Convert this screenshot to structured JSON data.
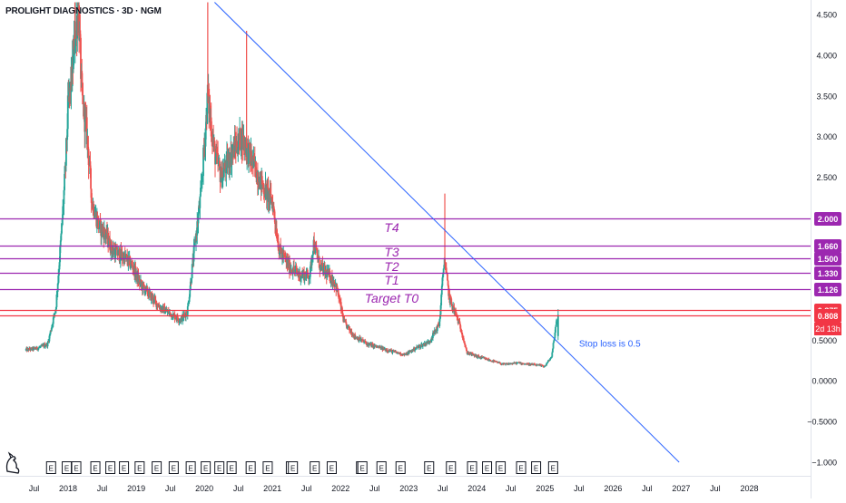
{
  "header": {
    "symbol_title": "PROLIGHT DIAGNOSTICS · 3D · NGM"
  },
  "colors": {
    "up": "#26a69a",
    "down": "#ef5350",
    "target_line": "#9c27b0",
    "current_line": "#f23645",
    "trendline": "#2962ff",
    "note_text": "#2962ff",
    "axis_text": "#131722"
  },
  "chart_data": {
    "type": "candlestick",
    "title": "PROLIGHT DIAGNOSTICS · 3D · NGM",
    "xlabel": "",
    "ylabel": "",
    "x_range": [
      2017.0,
      2028.9
    ],
    "ylim": [
      -1.0,
      4.65
    ],
    "x_ticks": [
      {
        "x": 2017.5,
        "label": "Jul"
      },
      {
        "x": 2018.0,
        "label": "2018"
      },
      {
        "x": 2018.5,
        "label": "Jul"
      },
      {
        "x": 2019.0,
        "label": "2019"
      },
      {
        "x": 2019.5,
        "label": "Jul"
      },
      {
        "x": 2020.0,
        "label": "2020"
      },
      {
        "x": 2020.5,
        "label": "Jul"
      },
      {
        "x": 2021.0,
        "label": "2021"
      },
      {
        "x": 2021.5,
        "label": "Jul"
      },
      {
        "x": 2022.0,
        "label": "2022"
      },
      {
        "x": 2022.5,
        "label": "Jul"
      },
      {
        "x": 2023.0,
        "label": "2023"
      },
      {
        "x": 2023.5,
        "label": "Jul"
      },
      {
        "x": 2024.0,
        "label": "2024"
      },
      {
        "x": 2024.5,
        "label": "Jul"
      },
      {
        "x": 2025.0,
        "label": "2025"
      },
      {
        "x": 2025.5,
        "label": "Jul"
      },
      {
        "x": 2026.0,
        "label": "2026"
      },
      {
        "x": 2026.5,
        "label": "Jul"
      },
      {
        "x": 2027.0,
        "label": "2027"
      },
      {
        "x": 2027.5,
        "label": "Jul"
      },
      {
        "x": 2028.0,
        "label": "2028"
      }
    ],
    "y_ticks": [
      {
        "y": 4.5,
        "label": "4.500"
      },
      {
        "y": 4.0,
        "label": "4.000"
      },
      {
        "y": 3.5,
        "label": "3.500"
      },
      {
        "y": 3.0,
        "label": "3.000"
      },
      {
        "y": 2.5,
        "label": "2.500"
      },
      {
        "y": 0.5,
        "label": "0.5000"
      },
      {
        "y": 0.0,
        "label": "0.0000"
      },
      {
        "y": -0.5,
        "label": "−0.5000"
      },
      {
        "y": -1.0,
        "label": "−1.000"
      }
    ],
    "price_path": [
      [
        2017.38,
        0.38
      ],
      [
        2017.55,
        0.4
      ],
      [
        2017.7,
        0.45
      ],
      [
        2017.82,
        0.9
      ],
      [
        2017.9,
        1.8
      ],
      [
        2017.96,
        2.6
      ],
      [
        2018.0,
        3.4
      ],
      [
        2018.05,
        3.7
      ],
      [
        2018.1,
        4.2
      ],
      [
        2018.15,
        4.6
      ],
      [
        2018.2,
        3.5
      ],
      [
        2018.28,
        3.0
      ],
      [
        2018.35,
        2.2
      ],
      [
        2018.45,
        1.9
      ],
      [
        2018.55,
        1.8
      ],
      [
        2018.65,
        1.6
      ],
      [
        2018.75,
        1.55
      ],
      [
        2018.85,
        1.5
      ],
      [
        2018.95,
        1.4
      ],
      [
        2019.05,
        1.2
      ],
      [
        2019.15,
        1.1
      ],
      [
        2019.25,
        1.0
      ],
      [
        2019.35,
        0.9
      ],
      [
        2019.45,
        0.85
      ],
      [
        2019.55,
        0.8
      ],
      [
        2019.65,
        0.75
      ],
      [
        2019.75,
        0.85
      ],
      [
        2019.85,
        1.6
      ],
      [
        2019.95,
        2.3
      ],
      [
        2020.05,
        3.5
      ],
      [
        2020.15,
        2.8
      ],
      [
        2020.25,
        2.5
      ],
      [
        2020.4,
        2.8
      ],
      [
        2020.55,
        3.0
      ],
      [
        2020.7,
        2.7
      ],
      [
        2020.85,
        2.4
      ],
      [
        2021.0,
        2.2
      ],
      [
        2021.1,
        1.6
      ],
      [
        2021.25,
        1.4
      ],
      [
        2021.4,
        1.3
      ],
      [
        2021.55,
        1.3
      ],
      [
        2021.6,
        1.7
      ],
      [
        2021.7,
        1.4
      ],
      [
        2021.82,
        1.3
      ],
      [
        2021.92,
        1.2
      ],
      [
        2021.98,
        1.0
      ],
      [
        2022.05,
        0.72
      ],
      [
        2022.2,
        0.55
      ],
      [
        2022.4,
        0.45
      ],
      [
        2022.6,
        0.4
      ],
      [
        2022.8,
        0.35
      ],
      [
        2022.95,
        0.32
      ],
      [
        2023.1,
        0.4
      ],
      [
        2023.3,
        0.48
      ],
      [
        2023.45,
        0.7
      ],
      [
        2023.52,
        1.5
      ],
      [
        2023.6,
        1.0
      ],
      [
        2023.7,
        0.8
      ],
      [
        2023.78,
        0.6
      ],
      [
        2023.85,
        0.35
      ],
      [
        2024.0,
        0.3
      ],
      [
        2024.2,
        0.25
      ],
      [
        2024.4,
        0.2
      ],
      [
        2024.6,
        0.22
      ],
      [
        2024.8,
        0.2
      ],
      [
        2025.0,
        0.18
      ],
      [
        2025.1,
        0.3
      ],
      [
        2025.18,
        0.81
      ]
    ],
    "spikes": [
      {
        "x": 2018.1,
        "high": 4.65
      },
      {
        "x": 2020.05,
        "high": 4.65
      },
      {
        "x": 2020.62,
        "high": 4.3
      },
      {
        "x": 2023.53,
        "high": 2.3
      }
    ],
    "horizontal_levels": [
      {
        "name": "T4-level",
        "price": 2.0,
        "label": "2.000",
        "color": "#9c27b0"
      },
      {
        "name": "T4-upper-level",
        "price": 1.66,
        "label": "1.660",
        "color": "#9c27b0"
      },
      {
        "name": "T3-level",
        "price": 1.5,
        "label": "1.500",
        "color": "#9c27b0"
      },
      {
        "name": "T2-level",
        "price": 1.33,
        "label": "1.330",
        "color": "#9c27b0"
      },
      {
        "name": "T1-level",
        "price": 1.126,
        "label": "1.126",
        "color": "#9c27b0"
      },
      {
        "name": "target-t0-level",
        "price": 0.875,
        "label": "0.875",
        "color": "#f23645"
      },
      {
        "name": "current-price",
        "price": 0.808,
        "label": "0.808",
        "color": "#f23645"
      }
    ],
    "countdown_label": "2d 13h",
    "annotations": [
      {
        "text": "T4",
        "x": 2022.75,
        "y": 1.83
      },
      {
        "text": "T3",
        "x": 2022.75,
        "y": 1.53
      },
      {
        "text": "T2",
        "x": 2022.75,
        "y": 1.35
      },
      {
        "text": "T1",
        "x": 2022.75,
        "y": 1.18
      },
      {
        "text": "Target T0",
        "x": 2022.75,
        "y": 0.96
      }
    ],
    "trendline": {
      "x1": 2020.15,
      "y1": 4.65,
      "x2": 2026.97,
      "y2": -1.0
    },
    "note": {
      "text": "Stop loss is 0.5",
      "x": 2025.5,
      "y": 0.42
    },
    "events": {
      "label": "E",
      "xs": [
        2017.75,
        2017.98,
        2018.12,
        2018.4,
        2018.62,
        2018.82,
        2019.05,
        2019.3,
        2019.55,
        2019.8,
        2020.02,
        2020.22,
        2020.4,
        2020.68,
        2020.93,
        2021.3,
        2021.62,
        2021.87,
        2022.32,
        2022.6,
        2022.88,
        2023.3,
        2023.62,
        2023.93,
        2024.15,
        2024.35,
        2024.65,
        2024.87,
        2025.12
      ],
      "boxed_prefix_xs": [
        2021.27,
        2022.3
      ]
    }
  },
  "watermark": {
    "name": "tradingview-logo-icon"
  }
}
